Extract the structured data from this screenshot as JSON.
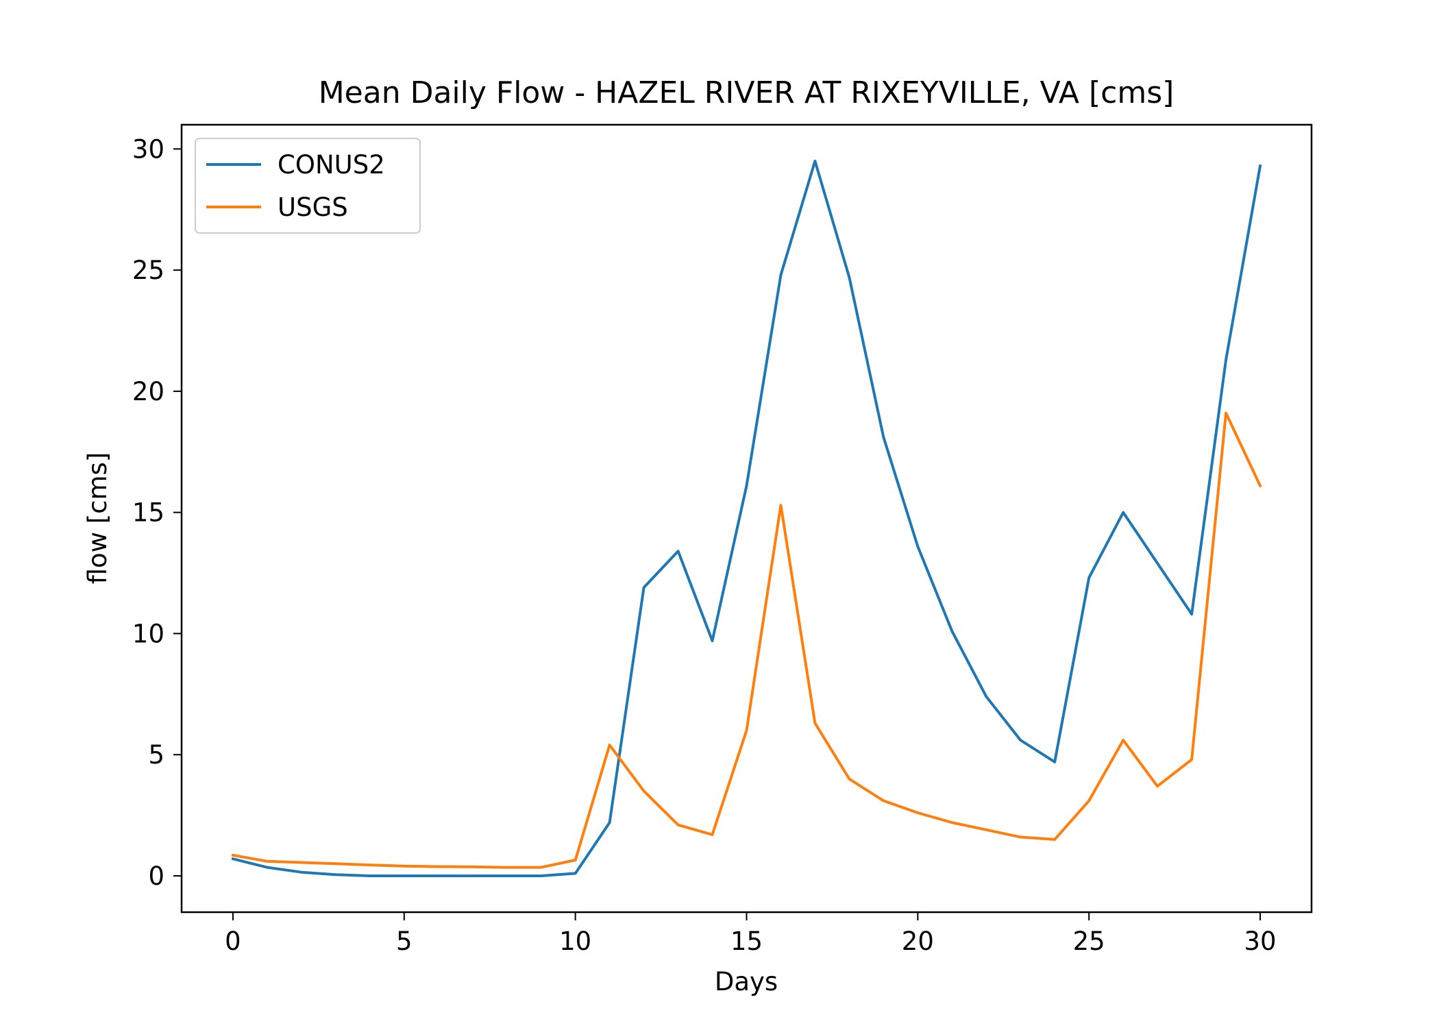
{
  "chart_data": {
    "type": "line",
    "title": "Mean Daily Flow - HAZEL RIVER AT RIXEYVILLE, VA [cms]",
    "xlabel": "Days",
    "ylabel": "flow [cms]",
    "xlim": [
      -1.5,
      31.5
    ],
    "ylim": [
      -1.5,
      31.0
    ],
    "xticks": [
      0,
      5,
      10,
      15,
      20,
      25,
      30
    ],
    "yticks": [
      0,
      5,
      10,
      15,
      20,
      25,
      30
    ],
    "grid": false,
    "legend_position": "upper-left",
    "x": [
      0,
      1,
      2,
      3,
      4,
      5,
      6,
      7,
      8,
      9,
      10,
      11,
      12,
      13,
      14,
      15,
      16,
      17,
      18,
      19,
      20,
      21,
      22,
      23,
      24,
      25,
      26,
      27,
      28,
      29,
      30
    ],
    "series": [
      {
        "name": "CONUS2",
        "color": "#1f77b4",
        "values": [
          0.7,
          0.35,
          0.15,
          0.05,
          0.0,
          0.0,
          0.0,
          0.0,
          0.0,
          0.0,
          0.1,
          2.2,
          11.9,
          13.4,
          9.7,
          16.1,
          24.8,
          29.5,
          24.7,
          18.1,
          13.6,
          10.1,
          7.4,
          5.6,
          4.7,
          12.3,
          15.0,
          12.9,
          10.8,
          21.3,
          29.3
        ]
      },
      {
        "name": "USGS",
        "color": "#ff7f0e",
        "values": [
          0.85,
          0.6,
          0.55,
          0.5,
          0.45,
          0.4,
          0.38,
          0.37,
          0.35,
          0.35,
          0.65,
          5.4,
          3.5,
          2.1,
          1.7,
          6.0,
          15.3,
          6.3,
          4.0,
          3.1,
          2.6,
          2.2,
          1.9,
          1.6,
          1.5,
          3.1,
          5.6,
          3.7,
          4.8,
          19.1,
          16.1
        ]
      }
    ]
  }
}
